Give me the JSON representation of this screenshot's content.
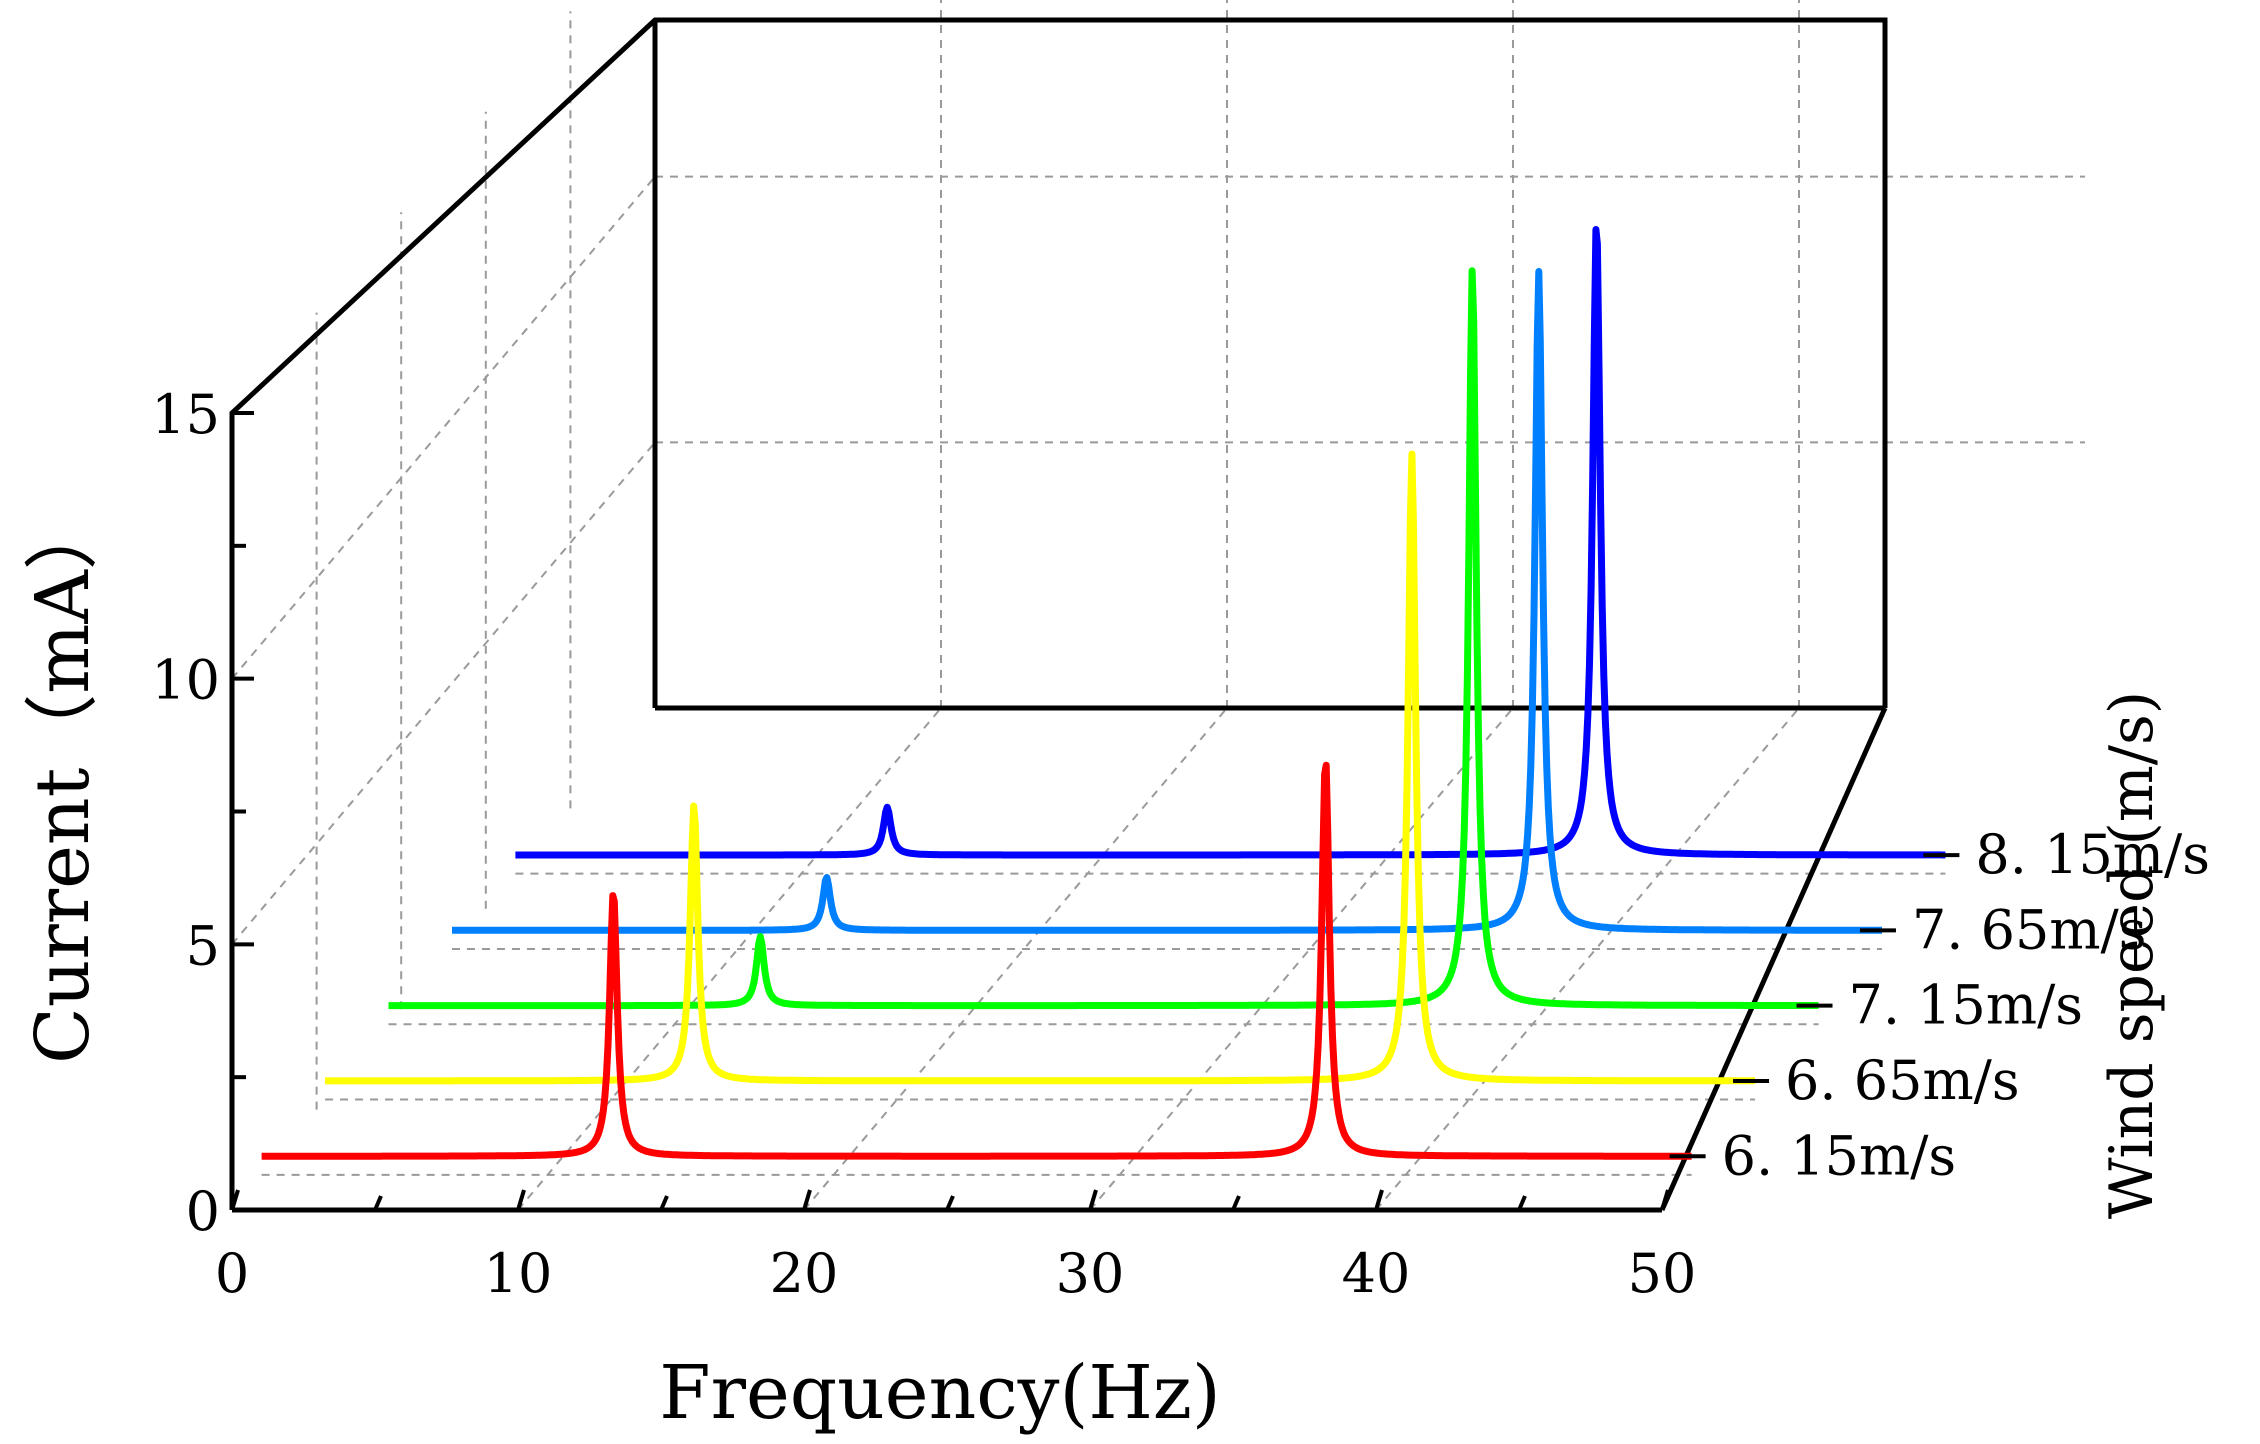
{
  "chart_data": {
    "type": "line",
    "subtype": "3d-waterfall",
    "title": "",
    "xlabel": "Frequency(Hz)",
    "ylabel": "Current（mA）",
    "zlabel": "Wind speed (m/s)",
    "xlim": [
      0,
      50
    ],
    "ylim": [
      0,
      15
    ],
    "xticks": [
      "0",
      "10",
      "20",
      "30",
      "40",
      "50"
    ],
    "yticks": [
      "0",
      "5",
      "10",
      "15"
    ],
    "grid": true,
    "series": [
      {
        "name": "6.15m/s",
        "label": "6. 15m/s",
        "color": "#ff0000",
        "baseline": 0.35,
        "peaks": [
          {
            "f": 12.3,
            "a": 5.0
          },
          {
            "f": 37.2,
            "a": 7.5
          }
        ]
      },
      {
        "name": "6.65m/s",
        "label": "6. 65m/s",
        "color": "#ffff00",
        "baseline": 0.35,
        "peaks": [
          {
            "f": 12.9,
            "a": 5.2
          },
          {
            "f": 38.0,
            "a": 11.8
          }
        ]
      },
      {
        "name": "7.15m/s",
        "label": "7. 15m/s",
        "color": "#00ff00",
        "baseline": 0.35,
        "peaks": [
          {
            "f": 13.0,
            "a": 1.3
          },
          {
            "f": 37.9,
            "a": 13.9
          }
        ]
      },
      {
        "name": "7.65m/s",
        "label": "7. 65m/s",
        "color": "#0080ff",
        "baseline": 0.35,
        "peaks": [
          {
            "f": 13.1,
            "a": 1.0
          },
          {
            "f": 38.0,
            "a": 12.4
          }
        ]
      },
      {
        "name": "8.15m/s",
        "label": "8. 15m/s",
        "color": "#0000ff",
        "baseline": 0.35,
        "peaks": [
          {
            "f": 13.0,
            "a": 0.9
          },
          {
            "f": 37.8,
            "a": 12.0
          }
        ]
      }
    ]
  }
}
